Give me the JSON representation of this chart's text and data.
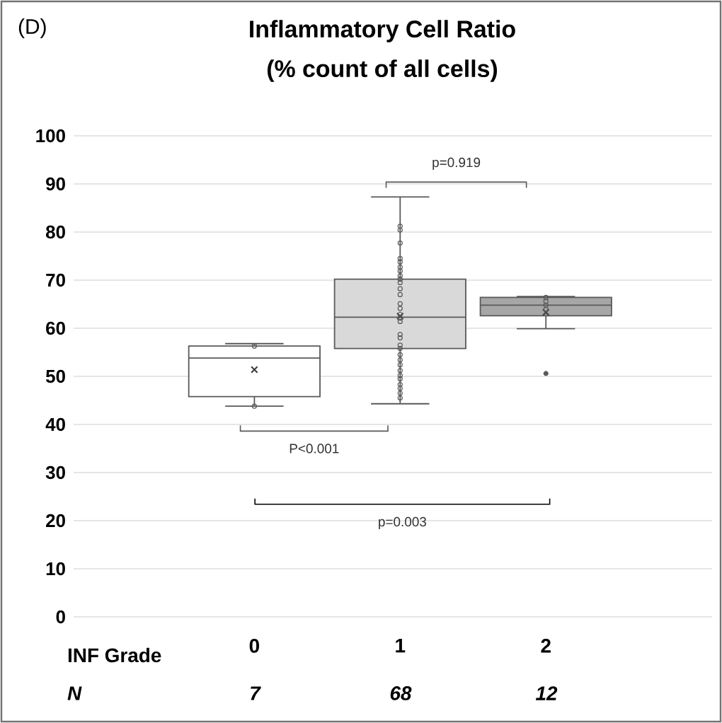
{
  "chart_data": {
    "type": "box",
    "title": "Inflammatory Cell Ratio",
    "subtitle": "(% count of all cells)",
    "xlabel": "INF Grade",
    "categories": [
      "0",
      "1",
      "2"
    ],
    "colors": [
      "#ffffff",
      "#d9d9d9",
      "#a6a6a6"
    ],
    "boxes": [
      {
        "low": 43.8,
        "q1": 45.8,
        "median": 53.8,
        "q3": 56.3,
        "high": 56.8,
        "mean": 51.4
      },
      {
        "low": 44.3,
        "q1": 55.8,
        "median": 62.3,
        "q3": 70.2,
        "high": 87.3,
        "mean": 62.5
      },
      {
        "low": 59.9,
        "q1": 62.6,
        "median": 64.8,
        "q3": 66.4,
        "high": 66.6,
        "mean": 63.3,
        "outliers": [
          50.6
        ]
      }
    ],
    "series": [
      {
        "type": "scatter",
        "color": "#595959",
        "marker": "circle",
        "x": [
          "0",
          "0",
          "1",
          "1",
          "1",
          "1",
          "1",
          "1",
          "1",
          "1",
          "1",
          "1",
          "1",
          "1",
          "1",
          "1",
          "1",
          "1",
          "1",
          "1",
          "1",
          "1",
          "1",
          "1",
          "1",
          "1",
          "1",
          "1",
          "1",
          "1",
          "1",
          "1",
          "1",
          "2",
          "2",
          "2",
          "2"
        ],
        "values": [
          56.3,
          43.8,
          81.2,
          80.4,
          77.7,
          74.5,
          73.8,
          72.7,
          71.9,
          70.9,
          70.2,
          69.5,
          68.2,
          67.0,
          65.1,
          64.1,
          62.9,
          62.1,
          61.4,
          58.7,
          58.0,
          56.5,
          55.8,
          54.5,
          53.4,
          52.4,
          51.2,
          50.2,
          49.5,
          48.3,
          47.5,
          46.5,
          45.5,
          66.4,
          65.6,
          64.8,
          63.9
        ]
      }
    ],
    "ylim": [
      0,
      100
    ],
    "yticks": [
      0,
      10,
      20,
      30,
      40,
      50,
      60,
      70,
      80,
      90,
      100
    ],
    "grid": "y",
    "annotations": [
      "(D)",
      "P<0.001",
      "p=0.919",
      "p=0.003",
      "N",
      "7",
      "68",
      "12"
    ]
  }
}
